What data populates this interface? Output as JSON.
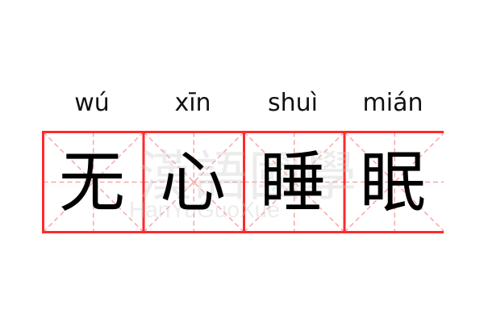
{
  "word": [
    {
      "pinyin": "wú",
      "char": "无"
    },
    {
      "pinyin": "xīn",
      "char": "心"
    },
    {
      "pinyin": "shuì",
      "char": "睡"
    },
    {
      "pinyin": "mián",
      "char": "眠"
    }
  ],
  "watermark": {
    "cn": "漢語國學",
    "en": "HanYuGuoXue"
  },
  "colors": {
    "border": "#ff2a2a",
    "guide": "#f7a8a8",
    "text": "#000000"
  }
}
